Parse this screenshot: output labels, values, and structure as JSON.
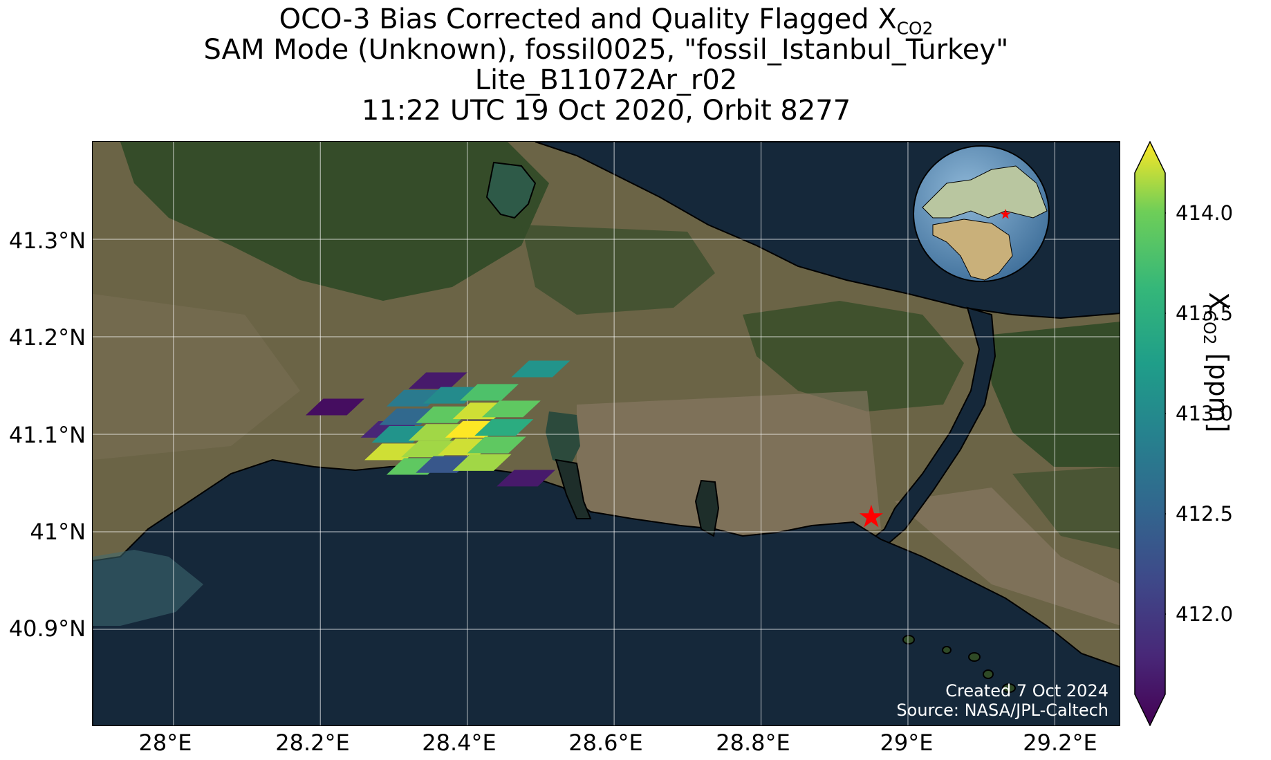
{
  "title": {
    "line1_prefix": "OCO-3 Bias Corrected and Quality Flagged X",
    "line1_sub": "CO2",
    "line2": "SAM Mode (Unknown), fossil0025, \"fossil_Istanbul_Turkey\"",
    "line3": "Lite_B11072Ar_r02",
    "line4": "11:22 UTC 19 Oct 2020, Orbit 8277"
  },
  "map": {
    "lon_range": [
      27.89,
      29.29
    ],
    "lat_range": [
      40.8,
      41.4
    ],
    "lon_ticks": [
      "28°E",
      "28.2°E",
      "28.4°E",
      "28.6°E",
      "28.8°E",
      "29°E",
      "29.2°E"
    ],
    "lon_tick_values": [
      28.0,
      28.2,
      28.4,
      28.6,
      28.8,
      29.0,
      29.2
    ],
    "lat_ticks": [
      "41.3°N",
      "41.2°N",
      "41.1°N",
      "41°N",
      "40.9°N"
    ],
    "lat_tick_values": [
      41.3,
      41.2,
      41.1,
      41.0,
      40.9
    ],
    "gridlines": true,
    "basemap": "satellite imagery",
    "target_marker": {
      "symbol": "red-star",
      "lon": 28.95,
      "lat": 41.015
    },
    "inset_globe": {
      "placement": "top-right",
      "marker": "red-star"
    },
    "credit": {
      "created": "Created 7 Oct 2024",
      "source": "Source: NASA/JPL-Caltech"
    },
    "soundings_xco2_ppm": [
      {
        "lon": 28.22,
        "lat": 41.128,
        "value": 411.7
      },
      {
        "lon": 28.36,
        "lat": 41.155,
        "value": 411.8
      },
      {
        "lon": 28.295,
        "lat": 41.105,
        "value": 411.9
      },
      {
        "lon": 28.48,
        "lat": 41.055,
        "value": 411.8
      },
      {
        "lon": 28.5,
        "lat": 41.167,
        "value": 413.1
      },
      {
        "lon": 28.33,
        "lat": 41.137,
        "value": 412.8
      },
      {
        "lon": 28.38,
        "lat": 41.14,
        "value": 413.0
      },
      {
        "lon": 28.43,
        "lat": 41.143,
        "value": 413.7
      },
      {
        "lon": 28.32,
        "lat": 41.118,
        "value": 412.6
      },
      {
        "lon": 28.37,
        "lat": 41.12,
        "value": 413.8
      },
      {
        "lon": 28.42,
        "lat": 41.124,
        "value": 414.1
      },
      {
        "lon": 28.46,
        "lat": 41.126,
        "value": 413.8
      },
      {
        "lon": 28.31,
        "lat": 41.1,
        "value": 413.1
      },
      {
        "lon": 28.36,
        "lat": 41.102,
        "value": 414.0
      },
      {
        "lon": 28.41,
        "lat": 41.105,
        "value": 414.2
      },
      {
        "lon": 28.45,
        "lat": 41.107,
        "value": 413.4
      },
      {
        "lon": 28.3,
        "lat": 41.082,
        "value": 414.1
      },
      {
        "lon": 28.35,
        "lat": 41.085,
        "value": 414.0
      },
      {
        "lon": 28.4,
        "lat": 41.087,
        "value": 414.1
      },
      {
        "lon": 28.44,
        "lat": 41.089,
        "value": 413.8
      },
      {
        "lon": 28.33,
        "lat": 41.067,
        "value": 413.8
      },
      {
        "lon": 28.37,
        "lat": 41.069,
        "value": 412.4
      },
      {
        "lon": 28.42,
        "lat": 41.071,
        "value": 414.0
      }
    ]
  },
  "colorbar": {
    "label_prefix": "X",
    "label_sub": "CO2",
    "label_suffix": " [ppm]",
    "vmin": 411.6,
    "vmax": 414.2,
    "extend": "both",
    "colormap": "viridis",
    "tick_values": [
      412.0,
      412.5,
      413.0,
      413.5,
      414.0
    ],
    "tick_labels": [
      "412.0",
      "412.5",
      "413.0",
      "413.5",
      "414.0"
    ]
  },
  "colors": {
    "land": "#6e6a4a",
    "forest": "#2f4a26",
    "sea": "#15283a",
    "coastline": "#000000",
    "grid": "#ffffff",
    "marker": "#ff0000"
  }
}
